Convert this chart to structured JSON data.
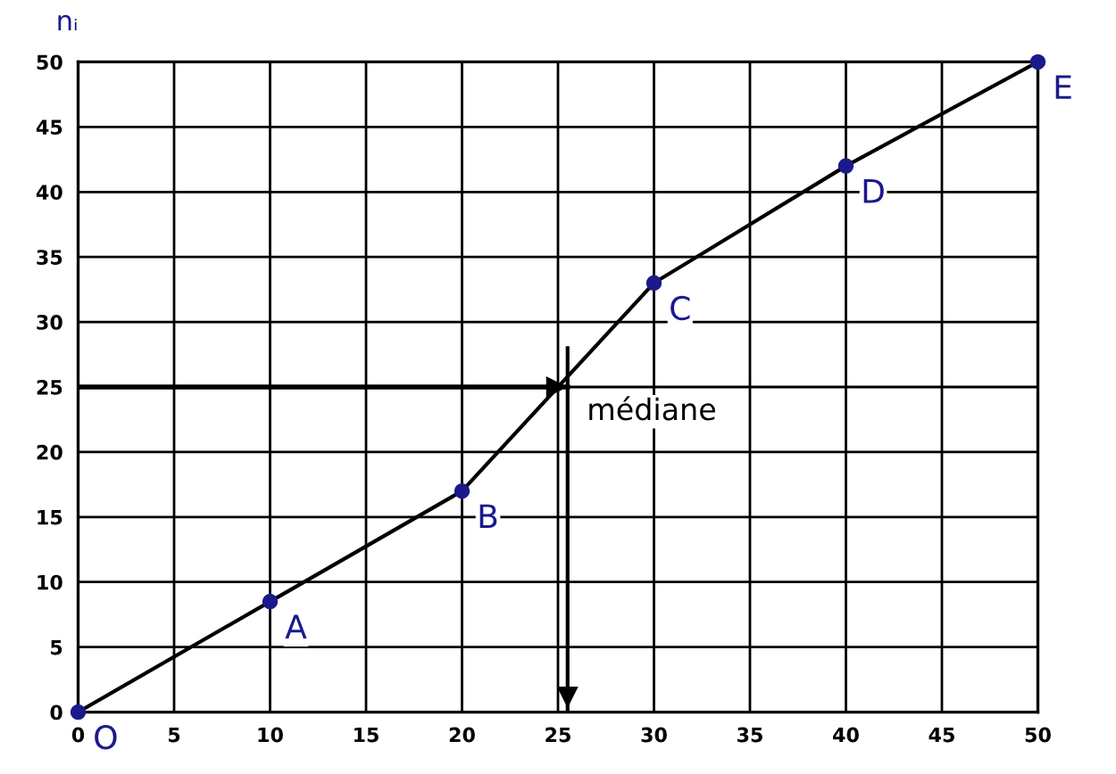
{
  "chart_data": {
    "type": "line",
    "ylabel": "nᵢ",
    "x": [
      0,
      10,
      20,
      30,
      40,
      50
    ],
    "series": [
      {
        "color": "#000000",
        "colors": [
          "#1a1a8c",
          "#1a1a8c",
          "#1a1a8c",
          "#1a1a8c",
          "#1a1a8c",
          "#1a1a8c"
        ],
        "values": [
          0,
          8.5,
          17,
          33,
          42,
          50
        ]
      }
    ],
    "xlim": [
      0,
      50
    ],
    "ylim": [
      0,
      50
    ],
    "xticks": [
      0,
      5,
      10,
      15,
      20,
      25,
      30,
      35,
      40,
      45,
      50
    ],
    "yticks": [
      0,
      5,
      10,
      15,
      20,
      25,
      30,
      35,
      40,
      45,
      50
    ],
    "grid": true,
    "marker": "circle",
    "line_style": "solid",
    "ref_lines": [
      {
        "axis": "y",
        "value": 25,
        "color": "#000000"
      },
      {
        "axis": "x",
        "value": 25.5,
        "label": "médiane",
        "color": "#000000"
      }
    ],
    "annotations": [
      {
        "text": "O",
        "x": 0,
        "y": 0
      },
      {
        "text": "A",
        "x": 10,
        "y": 8.5
      },
      {
        "text": "B",
        "x": 20,
        "y": 17
      },
      {
        "text": "C",
        "x": 30,
        "y": 33
      },
      {
        "text": "D",
        "x": 40,
        "y": 42
      },
      {
        "text": "E",
        "x": 50,
        "y": 50
      }
    ]
  }
}
